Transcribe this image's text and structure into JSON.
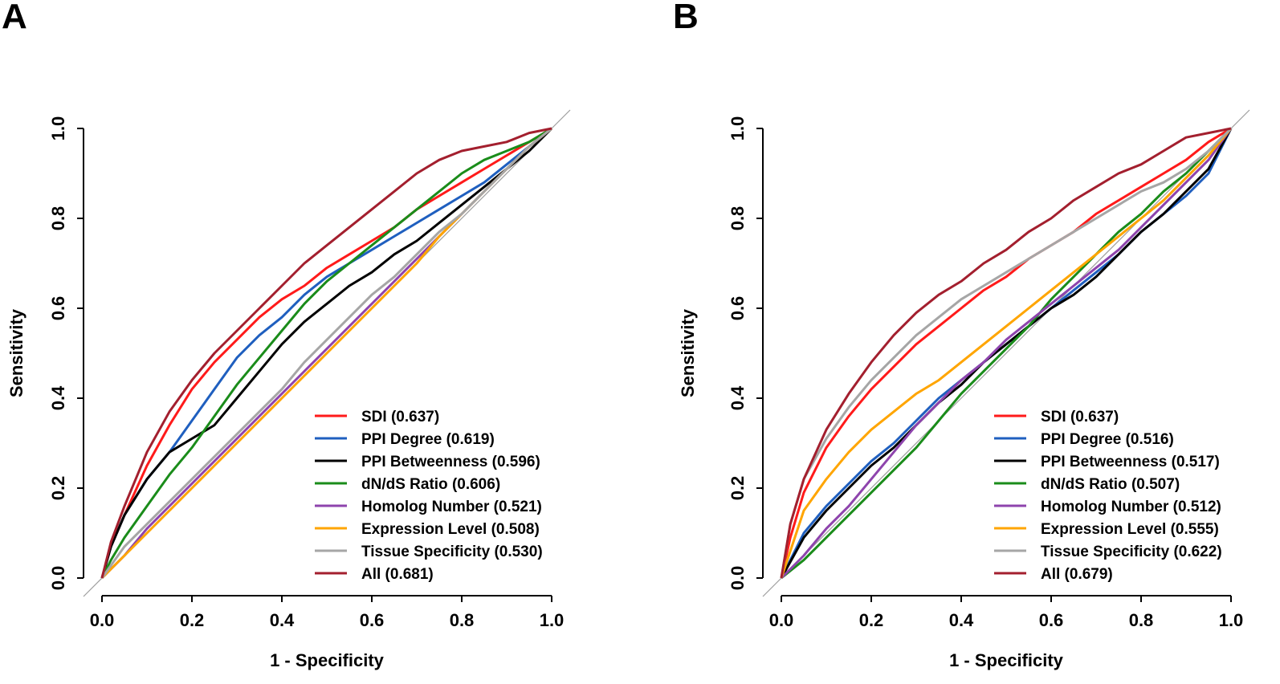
{
  "chart_data": [
    {
      "type": "line",
      "panel": "A",
      "xlabel": "1 - Specificity",
      "ylabel": "Sensitivity",
      "xlim": [
        0,
        1
      ],
      "ylim": [
        0,
        1
      ],
      "xticks": [
        "0.0",
        "0.2",
        "0.4",
        "0.6",
        "0.8",
        "1.0"
      ],
      "yticks": [
        "0.0",
        "0.2",
        "0.4",
        "0.6",
        "0.8",
        "1.0"
      ],
      "reference_line": {
        "x": [
          0,
          1
        ],
        "y": [
          0,
          1
        ],
        "color": "#9e9e9e"
      },
      "legend_position": "bottom-right",
      "series": [
        {
          "name": "SDI (0.637)",
          "color": "#ff1a1a",
          "x": [
            0,
            0.02,
            0.05,
            0.1,
            0.15,
            0.2,
            0.25,
            0.3,
            0.35,
            0.4,
            0.45,
            0.5,
            0.55,
            0.6,
            0.65,
            0.7,
            0.75,
            0.8,
            0.85,
            0.9,
            0.95,
            1
          ],
          "y": [
            0,
            0.07,
            0.14,
            0.25,
            0.34,
            0.42,
            0.48,
            0.53,
            0.58,
            0.62,
            0.65,
            0.69,
            0.72,
            0.75,
            0.78,
            0.82,
            0.85,
            0.88,
            0.91,
            0.94,
            0.97,
            1
          ]
        },
        {
          "name": "PPI Degree (0.619)",
          "color": "#1f5fbf",
          "x": [
            0,
            0.02,
            0.05,
            0.1,
            0.15,
            0.2,
            0.25,
            0.3,
            0.35,
            0.4,
            0.45,
            0.5,
            0.55,
            0.6,
            0.65,
            0.7,
            0.75,
            0.8,
            0.85,
            0.9,
            0.95,
            1
          ],
          "y": [
            0,
            0.07,
            0.14,
            0.22,
            0.28,
            0.35,
            0.42,
            0.49,
            0.54,
            0.58,
            0.63,
            0.67,
            0.7,
            0.73,
            0.76,
            0.79,
            0.82,
            0.85,
            0.88,
            0.92,
            0.96,
            1
          ]
        },
        {
          "name": "PPI Betweenness (0.596)",
          "color": "#000000",
          "x": [
            0,
            0.02,
            0.05,
            0.1,
            0.15,
            0.2,
            0.25,
            0.3,
            0.35,
            0.4,
            0.45,
            0.5,
            0.55,
            0.6,
            0.65,
            0.7,
            0.75,
            0.8,
            0.85,
            0.9,
            0.95,
            1
          ],
          "y": [
            0,
            0.07,
            0.14,
            0.22,
            0.28,
            0.31,
            0.34,
            0.4,
            0.46,
            0.52,
            0.57,
            0.61,
            0.65,
            0.68,
            0.72,
            0.75,
            0.79,
            0.83,
            0.87,
            0.91,
            0.95,
            1
          ]
        },
        {
          "name": "dN/dS Ratio (0.606)",
          "color": "#1a8c1a",
          "x": [
            0,
            0.02,
            0.05,
            0.1,
            0.15,
            0.2,
            0.25,
            0.3,
            0.35,
            0.4,
            0.45,
            0.5,
            0.55,
            0.6,
            0.65,
            0.7,
            0.75,
            0.8,
            0.85,
            0.9,
            0.95,
            1
          ],
          "y": [
            0,
            0.04,
            0.09,
            0.16,
            0.23,
            0.29,
            0.36,
            0.43,
            0.49,
            0.55,
            0.61,
            0.66,
            0.7,
            0.74,
            0.78,
            0.82,
            0.86,
            0.9,
            0.93,
            0.95,
            0.97,
            1
          ]
        },
        {
          "name": "Homolog Number (0.521)",
          "color": "#8e44ad",
          "x": [
            0,
            0.05,
            0.1,
            0.15,
            0.2,
            0.25,
            0.3,
            0.35,
            0.4,
            0.45,
            0.5,
            0.55,
            0.6,
            0.65,
            0.7,
            0.75,
            0.8,
            0.85,
            0.9,
            0.95,
            1
          ],
          "y": [
            0,
            0.05,
            0.11,
            0.16,
            0.21,
            0.26,
            0.31,
            0.36,
            0.41,
            0.46,
            0.51,
            0.56,
            0.61,
            0.66,
            0.71,
            0.76,
            0.81,
            0.86,
            0.91,
            0.96,
            1
          ]
        },
        {
          "name": "Expression Level (0.508)",
          "color": "#ffa500",
          "x": [
            0,
            0.05,
            0.1,
            0.15,
            0.2,
            0.25,
            0.3,
            0.35,
            0.4,
            0.45,
            0.5,
            0.55,
            0.6,
            0.65,
            0.7,
            0.75,
            0.8,
            0.85,
            0.9,
            0.95,
            1
          ],
          "y": [
            0,
            0.05,
            0.1,
            0.15,
            0.2,
            0.25,
            0.3,
            0.35,
            0.4,
            0.45,
            0.5,
            0.55,
            0.6,
            0.65,
            0.7,
            0.76,
            0.81,
            0.86,
            0.91,
            0.96,
            1
          ]
        },
        {
          "name": "Tissue Specificity (0.530)",
          "color": "#a6a6a6",
          "x": [
            0,
            0.05,
            0.1,
            0.15,
            0.2,
            0.25,
            0.3,
            0.35,
            0.4,
            0.45,
            0.5,
            0.55,
            0.6,
            0.65,
            0.7,
            0.75,
            0.8,
            0.85,
            0.9,
            0.95,
            1
          ],
          "y": [
            0,
            0.07,
            0.12,
            0.17,
            0.22,
            0.27,
            0.32,
            0.37,
            0.42,
            0.48,
            0.53,
            0.58,
            0.63,
            0.67,
            0.72,
            0.77,
            0.81,
            0.86,
            0.91,
            0.96,
            1
          ]
        },
        {
          "name": "All (0.681)",
          "color": "#a31f2e",
          "x": [
            0,
            0.02,
            0.05,
            0.1,
            0.15,
            0.2,
            0.25,
            0.3,
            0.35,
            0.4,
            0.45,
            0.5,
            0.55,
            0.6,
            0.65,
            0.7,
            0.75,
            0.8,
            0.85,
            0.9,
            0.95,
            1
          ],
          "y": [
            0,
            0.08,
            0.16,
            0.28,
            0.37,
            0.44,
            0.5,
            0.55,
            0.6,
            0.65,
            0.7,
            0.74,
            0.78,
            0.82,
            0.86,
            0.9,
            0.93,
            0.95,
            0.96,
            0.97,
            0.99,
            1
          ]
        }
      ]
    },
    {
      "type": "line",
      "panel": "B",
      "xlabel": "1 - Specificity",
      "ylabel": "Sensitivity",
      "xlim": [
        0,
        1
      ],
      "ylim": [
        0,
        1
      ],
      "xticks": [
        "0.0",
        "0.2",
        "0.4",
        "0.6",
        "0.8",
        "1.0"
      ],
      "yticks": [
        "0.0",
        "0.2",
        "0.4",
        "0.6",
        "0.8",
        "1.0"
      ],
      "reference_line": {
        "x": [
          0,
          1
        ],
        "y": [
          0,
          1
        ],
        "color": "#9e9e9e"
      },
      "legend_position": "bottom-right",
      "series": [
        {
          "name": "SDI (0.637)",
          "color": "#ff1a1a",
          "x": [
            0,
            0.02,
            0.05,
            0.1,
            0.15,
            0.2,
            0.25,
            0.3,
            0.35,
            0.4,
            0.45,
            0.5,
            0.55,
            0.6,
            0.65,
            0.7,
            0.75,
            0.8,
            0.85,
            0.9,
            0.95,
            1
          ],
          "y": [
            0,
            0.09,
            0.19,
            0.29,
            0.36,
            0.42,
            0.47,
            0.52,
            0.56,
            0.6,
            0.64,
            0.67,
            0.71,
            0.74,
            0.77,
            0.81,
            0.84,
            0.87,
            0.9,
            0.93,
            0.97,
            1
          ]
        },
        {
          "name": "PPI Degree (0.516)",
          "color": "#1f5fbf",
          "x": [
            0,
            0.05,
            0.1,
            0.15,
            0.2,
            0.25,
            0.3,
            0.35,
            0.4,
            0.45,
            0.5,
            0.55,
            0.6,
            0.65,
            0.7,
            0.75,
            0.8,
            0.85,
            0.9,
            0.95,
            1
          ],
          "y": [
            0,
            0.1,
            0.16,
            0.21,
            0.26,
            0.3,
            0.35,
            0.4,
            0.44,
            0.48,
            0.52,
            0.56,
            0.6,
            0.64,
            0.68,
            0.72,
            0.77,
            0.81,
            0.85,
            0.9,
            1
          ]
        },
        {
          "name": "PPI Betweenness (0.517)",
          "color": "#000000",
          "x": [
            0,
            0.05,
            0.1,
            0.15,
            0.2,
            0.25,
            0.3,
            0.35,
            0.4,
            0.45,
            0.5,
            0.55,
            0.6,
            0.65,
            0.7,
            0.75,
            0.8,
            0.85,
            0.9,
            0.95,
            1
          ],
          "y": [
            0,
            0.09,
            0.15,
            0.2,
            0.25,
            0.29,
            0.34,
            0.39,
            0.43,
            0.48,
            0.52,
            0.56,
            0.6,
            0.63,
            0.67,
            0.72,
            0.77,
            0.81,
            0.86,
            0.91,
            1
          ]
        },
        {
          "name": "dN/dS Ratio (0.507)",
          "color": "#1a8c1a",
          "x": [
            0,
            0.05,
            0.1,
            0.15,
            0.2,
            0.25,
            0.3,
            0.35,
            0.4,
            0.45,
            0.5,
            0.55,
            0.6,
            0.65,
            0.7,
            0.75,
            0.8,
            0.85,
            0.9,
            0.95,
            1
          ],
          "y": [
            0,
            0.04,
            0.09,
            0.14,
            0.19,
            0.24,
            0.29,
            0.35,
            0.41,
            0.46,
            0.51,
            0.56,
            0.62,
            0.67,
            0.72,
            0.77,
            0.81,
            0.86,
            0.9,
            0.95,
            1
          ]
        },
        {
          "name": "Homolog Number (0.512)",
          "color": "#8e44ad",
          "x": [
            0,
            0.05,
            0.1,
            0.15,
            0.2,
            0.25,
            0.3,
            0.35,
            0.4,
            0.45,
            0.5,
            0.55,
            0.6,
            0.65,
            0.7,
            0.75,
            0.8,
            0.85,
            0.9,
            0.95,
            1
          ],
          "y": [
            0,
            0.05,
            0.11,
            0.16,
            0.22,
            0.28,
            0.34,
            0.39,
            0.44,
            0.48,
            0.53,
            0.57,
            0.61,
            0.65,
            0.69,
            0.73,
            0.78,
            0.83,
            0.88,
            0.93,
            1
          ]
        },
        {
          "name": "Expression Level (0.555)",
          "color": "#ffa500",
          "x": [
            0,
            0.05,
            0.1,
            0.15,
            0.2,
            0.25,
            0.3,
            0.35,
            0.4,
            0.45,
            0.5,
            0.55,
            0.6,
            0.65,
            0.7,
            0.75,
            0.8,
            0.85,
            0.9,
            0.95,
            1
          ],
          "y": [
            0,
            0.15,
            0.22,
            0.28,
            0.33,
            0.37,
            0.41,
            0.44,
            0.48,
            0.52,
            0.56,
            0.6,
            0.64,
            0.68,
            0.72,
            0.76,
            0.8,
            0.84,
            0.89,
            0.94,
            1
          ]
        },
        {
          "name": "Tissue Specificity (0.622)",
          "color": "#a6a6a6",
          "x": [
            0,
            0.02,
            0.05,
            0.1,
            0.15,
            0.2,
            0.25,
            0.3,
            0.35,
            0.4,
            0.45,
            0.5,
            0.55,
            0.6,
            0.65,
            0.7,
            0.75,
            0.8,
            0.85,
            0.9,
            0.95,
            1
          ],
          "y": [
            0,
            0.12,
            0.22,
            0.31,
            0.38,
            0.44,
            0.49,
            0.54,
            0.58,
            0.62,
            0.65,
            0.68,
            0.71,
            0.74,
            0.77,
            0.8,
            0.83,
            0.86,
            0.88,
            0.91,
            0.95,
            1
          ]
        },
        {
          "name": "All (0.679)",
          "color": "#a31f2e",
          "x": [
            0,
            0.02,
            0.05,
            0.1,
            0.15,
            0.2,
            0.25,
            0.3,
            0.35,
            0.4,
            0.45,
            0.5,
            0.55,
            0.6,
            0.65,
            0.7,
            0.75,
            0.8,
            0.85,
            0.9,
            0.95,
            1
          ],
          "y": [
            0,
            0.12,
            0.22,
            0.33,
            0.41,
            0.48,
            0.54,
            0.59,
            0.63,
            0.66,
            0.7,
            0.73,
            0.77,
            0.8,
            0.84,
            0.87,
            0.9,
            0.92,
            0.95,
            0.98,
            0.99,
            1
          ]
        }
      ]
    }
  ],
  "panels": {
    "a": {
      "letter": "A"
    },
    "b": {
      "letter": "B"
    }
  }
}
